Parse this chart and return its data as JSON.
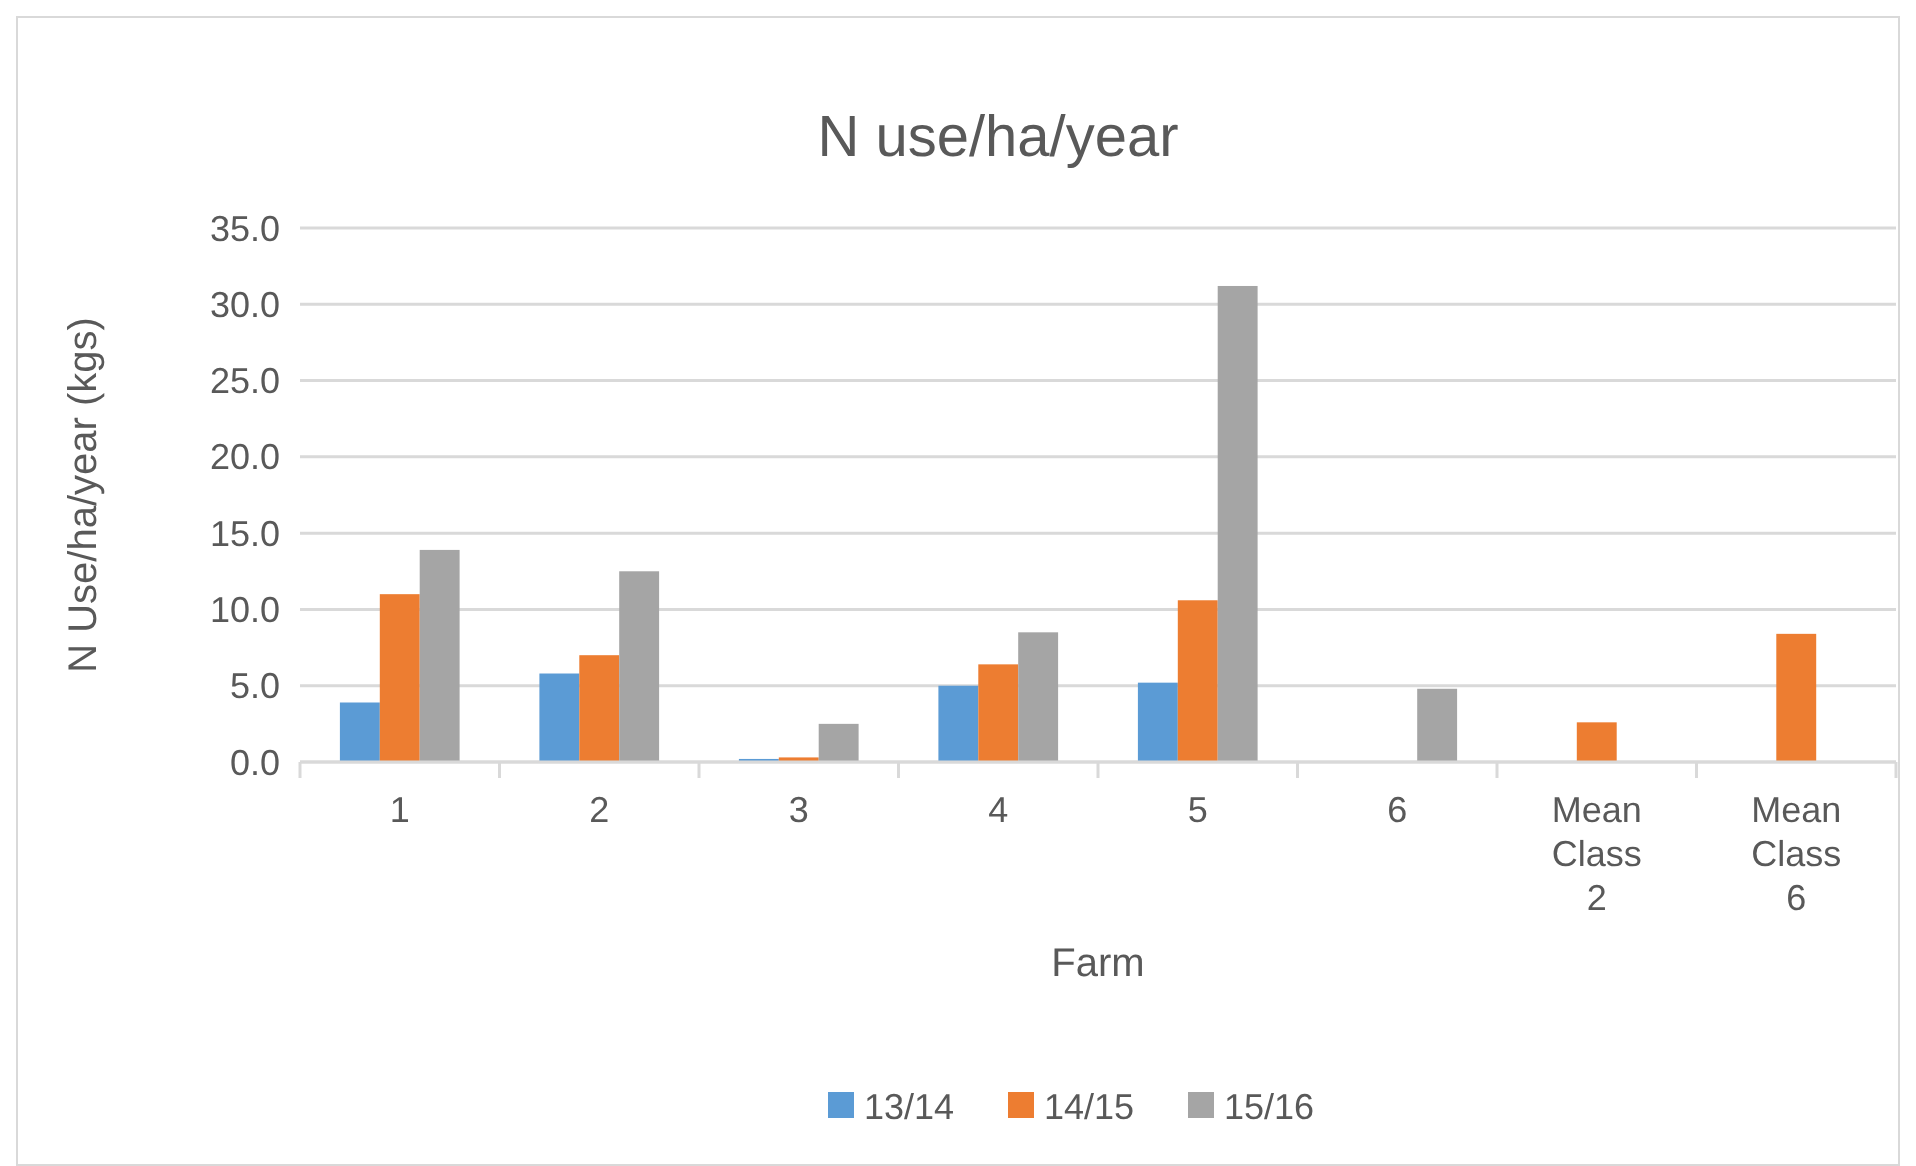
{
  "chart_data": {
    "type": "bar",
    "title": "N use/ha/year",
    "xlabel": "Farm",
    "ylabel": "N Use/ha/year (kgs)",
    "categories": [
      "1",
      "2",
      "3",
      "4",
      "5",
      "6",
      "Mean Class 2",
      "Mean Class 6"
    ],
    "series": [
      {
        "name": "13/14",
        "color": "#5b9bd5",
        "values": [
          3.9,
          5.8,
          0.2,
          5.0,
          5.2,
          null,
          null,
          null
        ]
      },
      {
        "name": "14/15",
        "color": "#ed7d31",
        "values": [
          11.0,
          7.0,
          0.3,
          6.4,
          10.6,
          null,
          2.6,
          8.4
        ]
      },
      {
        "name": "15/16",
        "color": "#a5a5a5",
        "values": [
          13.9,
          12.5,
          2.5,
          8.5,
          31.2,
          4.8,
          null,
          null
        ]
      }
    ],
    "ylim": [
      0,
      35
    ],
    "yticks": [
      {
        "value": 0,
        "label": "0.0"
      },
      {
        "value": 5,
        "label": "5.0"
      },
      {
        "value": 10,
        "label": "10.0"
      },
      {
        "value": 15,
        "label": "15.0"
      },
      {
        "value": 20,
        "label": "20.0"
      },
      {
        "value": 25,
        "label": "25.0"
      },
      {
        "value": 30,
        "label": "30.0"
      },
      {
        "value": 35,
        "label": "35.0"
      }
    ],
    "grid": "y",
    "legend": "bottom"
  }
}
